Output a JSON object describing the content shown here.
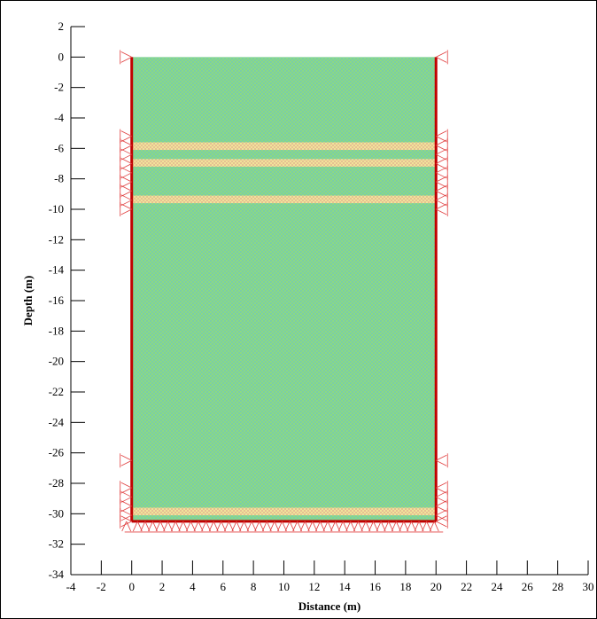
{
  "chart_data": {
    "type": "scatter",
    "xlabel": "Distance (m)",
    "ylabel": "Depth (m)",
    "xlim": [
      -4,
      30
    ],
    "ylim": [
      -34,
      2
    ],
    "x_ticks": [
      -4,
      -2,
      0,
      2,
      4,
      6,
      8,
      10,
      12,
      14,
      16,
      18,
      20,
      22,
      24,
      26,
      28,
      30
    ],
    "y_ticks": [
      2,
      0,
      -2,
      -4,
      -6,
      -8,
      -10,
      -12,
      -14,
      -16,
      -18,
      -20,
      -22,
      -24,
      -26,
      -28,
      -30,
      -32,
      -34
    ],
    "grid": false,
    "domain": {
      "x": [
        0,
        20
      ],
      "y": [
        -30.5,
        0
      ]
    },
    "thin_layers": [
      {
        "top": -5.6,
        "bottom": -6.1
      },
      {
        "top": -6.7,
        "bottom": -7.2
      },
      {
        "top": -9.1,
        "bottom": -9.6
      },
      {
        "top": -29.6,
        "bottom": -30.1
      }
    ],
    "boundary_supports": {
      "left_y": [
        0,
        -5.2,
        -5.8,
        -6.4,
        -7.0,
        -7.6,
        -8.2,
        -8.8,
        -9.4,
        -10.0,
        -26.5,
        -28.3,
        -28.9,
        -29.5,
        -30.1,
        -30.5
      ],
      "right_y": [
        0,
        -5.2,
        -5.8,
        -6.4,
        -7.0,
        -7.6,
        -8.2,
        -8.8,
        -9.4,
        -10.0,
        -26.5,
        -28.3,
        -28.9,
        -29.5,
        -30.1,
        -30.5
      ]
    },
    "colors": {
      "soil": "#8fdc7d",
      "mesh": "#6ec4c0",
      "layer": "#f2e99a",
      "boundary": "#c00000",
      "support": "#e04040"
    }
  }
}
